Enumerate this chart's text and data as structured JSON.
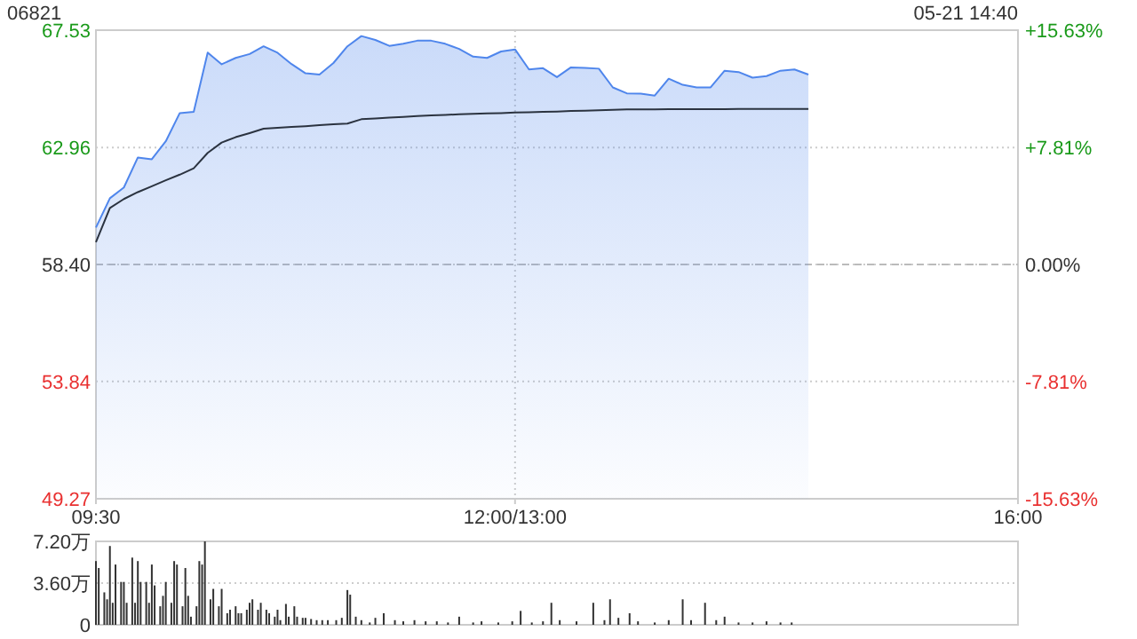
{
  "chart_data": [
    {
      "type": "line",
      "title": "06821",
      "annotations": [
        "05-21 14:40"
      ],
      "categories": [
        "09:30",
        null,
        null,
        null,
        null,
        null,
        null,
        null,
        null,
        null,
        null,
        null,
        null,
        null,
        null,
        null,
        null,
        null,
        null,
        null,
        null,
        null,
        null,
        null,
        null,
        null,
        null,
        null,
        null,
        null,
        "12:00/13:00",
        null,
        null,
        null,
        null,
        null,
        null,
        null,
        null,
        null,
        null,
        null,
        null,
        null,
        null,
        null,
        null,
        null,
        null,
        null,
        null,
        null,
        null,
        null,
        null,
        null,
        null,
        null,
        null,
        null,
        null,
        null,
        null,
        null,
        null,
        null,
        "16:00"
      ],
      "ylim": [
        49.27,
        67.53
      ],
      "yticks": [
        49.27,
        53.84,
        {
          "value": 58.4,
          "label": "58.40"
        },
        62.96,
        67.53
      ],
      "y2lim": [
        -15.63,
        15.63
      ],
      "y2ticks": [
        {
          "value": -15.63,
          "label": "-15.63%"
        },
        {
          "value": -7.81,
          "label": "-7.81%"
        },
        {
          "value": 0,
          "label": "0.00%"
        },
        {
          "value": 7.81,
          "label": "+7.81%"
        },
        {
          "value": 15.63,
          "label": "+15.63%"
        }
      ],
      "grid": true,
      "ref_lines": [
        {
          "axis": "y",
          "value": 58.4,
          "line_style": "dashed",
          "color": "#bbbbbb"
        }
      ],
      "series": [
        {
          "type": "area",
          "color": "#4f86ec",
          "values": [
            59.84,
            60.98,
            61.4,
            62.57,
            62.5,
            63.2,
            64.3,
            64.35,
            66.66,
            66.2,
            66.45,
            66.6,
            66.9,
            66.65,
            66.21,
            65.85,
            65.8,
            66.25,
            66.9,
            67.3,
            67.15,
            66.92,
            67.0,
            67.12,
            67.12,
            67.0,
            66.8,
            66.5,
            66.45,
            66.7,
            66.78,
            66.0,
            66.05,
            65.7,
            66.08,
            66.06,
            66.03,
            65.3,
            65.07,
            65.06,
            64.98,
            65.64,
            65.4,
            65.3,
            65.3,
            65.95,
            65.9,
            65.68,
            65.74,
            65.95,
            66.0,
            65.8,
            null,
            null,
            null,
            null,
            null,
            null,
            null,
            null,
            null,
            null,
            null,
            null,
            null,
            null,
            null
          ]
        },
        {
          "color": "#2b3340",
          "values": [
            59.27,
            60.6,
            60.95,
            61.22,
            61.45,
            61.68,
            61.9,
            62.15,
            62.75,
            63.15,
            63.36,
            63.52,
            63.69,
            63.73,
            63.76,
            63.79,
            63.83,
            63.86,
            63.89,
            64.06,
            64.09,
            64.12,
            64.15,
            64.18,
            64.21,
            64.23,
            64.25,
            64.27,
            64.29,
            64.3,
            64.32,
            64.33,
            64.35,
            64.36,
            64.38,
            64.39,
            64.41,
            64.43,
            64.44,
            64.44,
            64.44,
            64.45,
            64.45,
            64.45,
            64.45,
            64.45,
            64.46,
            64.46,
            64.46,
            64.46,
            64.46,
            64.46,
            null,
            null,
            null,
            null,
            null,
            null,
            null,
            null,
            null,
            null,
            null,
            null,
            null,
            null,
            null
          ]
        }
      ]
    },
    {
      "type": "bar",
      "color": "#333333",
      "tick_labels": "y",
      "grid": "y",
      "ylim": [
        0,
        7.2
      ],
      "yticks": [
        0,
        {
          "value": 3.6,
          "label": "3.60万"
        },
        {
          "value": 7.2,
          "label": "7.20万"
        }
      ],
      "categories": [
        null,
        null,
        null,
        null,
        null,
        null,
        null,
        null,
        null,
        null,
        null,
        null,
        null,
        null,
        null,
        null,
        null,
        null,
        null,
        null,
        null,
        null,
        null,
        null,
        null,
        null,
        null,
        null,
        null,
        null,
        null,
        null,
        null,
        null,
        null,
        null,
        null,
        null,
        null,
        null,
        null,
        null,
        null,
        null,
        null,
        null,
        null,
        null,
        null,
        null,
        null,
        null,
        null,
        null,
        null,
        null,
        null,
        null,
        null,
        null,
        null,
        null,
        null,
        null,
        null,
        null,
        null,
        null,
        null,
        null,
        null,
        null,
        null,
        null,
        null,
        null,
        null,
        null,
        null,
        null,
        null,
        null,
        null,
        null,
        null,
        null,
        null,
        null,
        null,
        null,
        null,
        null,
        null,
        null,
        null,
        null,
        null,
        null,
        null,
        null,
        null,
        null,
        null,
        null,
        null,
        null,
        null,
        null,
        null,
        null,
        null,
        null,
        null,
        null,
        null,
        null,
        null,
        null,
        null,
        null,
        null,
        null,
        null,
        null,
        null,
        null,
        null,
        null,
        null,
        null,
        null,
        null,
        null,
        null,
        null,
        null,
        null,
        null,
        null,
        null,
        null,
        null,
        null,
        null,
        null,
        null,
        null,
        null,
        null,
        null,
        null,
        null,
        null,
        null,
        null,
        null,
        null,
        null,
        null,
        null,
        null,
        null,
        null,
        null,
        null,
        null,
        null,
        null,
        null,
        null,
        null,
        null,
        null,
        null,
        null,
        null,
        null,
        null,
        null,
        null,
        null,
        null,
        null,
        null,
        null,
        null,
        null,
        null,
        null,
        null,
        null,
        null,
        null,
        null,
        null,
        null,
        null,
        null,
        null,
        null,
        null,
        null,
        null,
        null,
        null,
        null,
        null,
        null,
        null,
        null,
        null,
        null,
        null,
        null,
        null,
        null,
        null,
        null,
        null,
        null,
        null,
        null,
        null,
        null,
        null,
        null,
        null,
        null,
        null,
        null,
        null,
        null,
        null,
        null,
        null,
        null,
        null,
        null,
        null,
        null,
        null,
        null,
        null,
        null,
        null,
        null,
        null,
        null,
        null,
        null,
        null,
        null,
        null,
        null,
        null,
        null,
        null,
        null,
        null,
        null,
        null,
        null,
        null,
        null,
        null,
        null,
        null,
        null,
        null,
        null,
        null,
        null,
        null,
        null,
        null,
        null,
        null,
        null,
        null,
        null,
        null,
        null,
        null,
        null,
        null,
        null,
        null,
        null,
        null,
        null,
        null,
        null,
        null,
        null,
        null,
        null,
        null,
        null,
        null,
        null,
        null,
        null,
        null,
        null,
        null,
        null,
        null,
        null,
        null,
        null,
        null,
        null,
        null,
        null,
        null,
        null,
        null,
        null,
        null,
        null,
        null,
        null,
        null,
        null,
        null,
        null,
        null,
        null,
        null,
        null,
        null
      ],
      "values": [
        5.5,
        4.9,
        null,
        2.8,
        2.2,
        6.8,
        1.9,
        5.2,
        null,
        3.7,
        3.7,
        1.9,
        null,
        5.8,
        1.9,
        5.5,
        3.7,
        null,
        3.7,
        1.9,
        5.2,
        3.4,
        null,
        1.6,
        2.5,
        3.7,
        null,
        1.9,
        5.5,
        5.2,
        null,
        1.6,
        4.9,
        2.5,
        0.7,
        null,
        1.6,
        5.5,
        5.2,
        7.2,
        null,
        2.2,
        3.1,
        null,
        1.6,
        3.1,
        null,
        1,
        1.3,
        null,
        1.6,
        1,
        1,
        null,
        1.3,
        1.9,
        2.2,
        null,
        1.3,
        1.9,
        null,
        1.3,
        1,
        null,
        0.7,
        1.3,
        0.4,
        null,
        1.8,
        0.7,
        null,
        1.6,
        0.7,
        null,
        0.6,
        0.6,
        null,
        0.5,
        null,
        0.4,
        null,
        0.4,
        null,
        0.4,
        null,
        null,
        0.4,
        null,
        0.6,
        null,
        3,
        2.6,
        null,
        0.7,
        null,
        0.4,
        null,
        null,
        0.2,
        null,
        0.6,
        null,
        null,
        1,
        null,
        null,
        null,
        0.4,
        null,
        null,
        0.3,
        null,
        null,
        null,
        0.4,
        null,
        null,
        null,
        0.3,
        null,
        null,
        null,
        0.3,
        null,
        null,
        null,
        0.2,
        null,
        null,
        null,
        0.7,
        null,
        null,
        null,
        null,
        0.2,
        null,
        null,
        0.3,
        null,
        null,
        null,
        null,
        null,
        0.2,
        null,
        null,
        null,
        null,
        0.3,
        null,
        null,
        1.2,
        null,
        null,
        null,
        0.2,
        null,
        null,
        null,
        0.3,
        null,
        null,
        1.9,
        null,
        null,
        0.4,
        null,
        null,
        null,
        null,
        null,
        0.3,
        null,
        null,
        null,
        null,
        null,
        1.9,
        null,
        null,
        null,
        0.4,
        null,
        2.2,
        null,
        null,
        0.6,
        null,
        null,
        null,
        1,
        null,
        null,
        0.3,
        null,
        null,
        null,
        null,
        null,
        0.2,
        null,
        null,
        null,
        null,
        0.4,
        null,
        null,
        null,
        null,
        2.2,
        null,
        null,
        0.4,
        null,
        null,
        null,
        null,
        1.9,
        null,
        null,
        null,
        0.4,
        null,
        null,
        0.7,
        null,
        null,
        null,
        null,
        0.2,
        null,
        null,
        null,
        null,
        0.2,
        null,
        null,
        null,
        null,
        0.3,
        null,
        null,
        null,
        null,
        0.2,
        null,
        null,
        null,
        0.2,
        null,
        null,
        null,
        null,
        null,
        null,
        null,
        null,
        null,
        null,
        null,
        null,
        null,
        null,
        null,
        null,
        null,
        null,
        null,
        null,
        null,
        null,
        null,
        null,
        null,
        null,
        null,
        null,
        null,
        null,
        null,
        null,
        null,
        null,
        null,
        null,
        null,
        null,
        null,
        null,
        null,
        null,
        null,
        null,
        null,
        null,
        null,
        null,
        null,
        null,
        null,
        null,
        null,
        null,
        null,
        null,
        null,
        null,
        null,
        null,
        null,
        null,
        null,
        null,
        null,
        null,
        null,
        null,
        null,
        null,
        null,
        null,
        null,
        null,
        null,
        null,
        null,
        null,
        null,
        null,
        null
      ]
    }
  ]
}
